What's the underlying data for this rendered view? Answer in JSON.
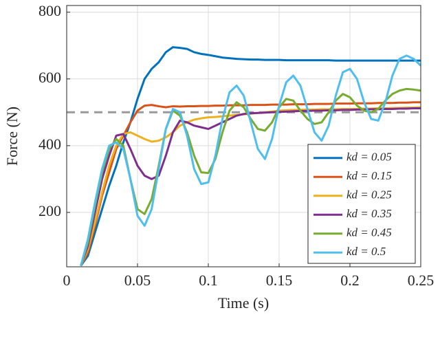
{
  "chart_data": {
    "type": "line",
    "x_label": "Time (s)",
    "y_label": "Force (N)",
    "x": [
      0.01,
      0.015,
      0.02,
      0.025,
      0.03,
      0.035,
      0.04,
      0.045,
      0.05,
      0.055,
      0.06,
      0.065,
      0.07,
      0.075,
      0.08,
      0.085,
      0.09,
      0.095,
      0.1,
      0.105,
      0.11,
      0.115,
      0.12,
      0.125,
      0.13,
      0.135,
      0.14,
      0.145,
      0.15,
      0.155,
      0.16,
      0.165,
      0.17,
      0.175,
      0.18,
      0.185,
      0.19,
      0.195,
      0.2,
      0.205,
      0.21,
      0.215,
      0.22,
      0.225,
      0.23,
      0.235,
      0.24,
      0.245,
      0.25
    ],
    "series": [
      {
        "name": "kd = 0.05",
        "color": "#0072bd",
        "values": [
          40,
          70,
          140,
          210,
          280,
          340,
          410,
          470,
          540,
          600,
          630,
          650,
          680,
          695,
          693,
          690,
          680,
          675,
          672,
          668,
          664,
          662,
          660,
          659,
          658,
          658,
          657,
          657,
          657,
          656,
          656,
          656,
          656,
          656,
          656,
          656,
          655,
          655,
          655,
          655,
          655,
          655,
          655,
          655,
          655,
          655,
          655,
          655,
          655
        ]
      },
      {
        "name": "kd = 0.15",
        "color": "#d95319",
        "values": [
          40,
          80,
          160,
          250,
          320,
          390,
          430,
          470,
          505,
          520,
          522,
          518,
          515,
          518,
          517,
          518,
          518,
          519,
          519,
          520,
          520,
          521,
          521,
          521,
          522,
          522,
          522,
          523,
          523,
          523,
          524,
          524,
          524,
          525,
          525,
          525,
          526,
          526,
          526,
          527,
          527,
          527,
          528,
          528,
          528,
          529,
          529,
          530,
          530
        ]
      },
      {
        "name": "kd = 0.25",
        "color": "#edb120",
        "values": [
          40,
          90,
          170,
          260,
          340,
          400,
          435,
          440,
          430,
          420,
          412,
          415,
          425,
          440,
          460,
          470,
          478,
          482,
          485,
          486,
          488,
          490,
          492,
          494,
          496,
          498,
          500,
          502,
          505,
          506,
          507,
          507,
          508,
          508,
          509,
          509,
          509,
          510,
          510,
          510,
          511,
          511,
          512,
          512,
          513,
          513,
          514,
          514,
          515
        ]
      },
      {
        "name": "kd = 0.35",
        "color": "#7e2f8e",
        "values": [
          40,
          100,
          200,
          300,
          370,
          430,
          435,
          390,
          340,
          310,
          300,
          310,
          370,
          440,
          475,
          470,
          460,
          455,
          450,
          460,
          470,
          480,
          490,
          495,
          497,
          498,
          499,
          500,
          501,
          502,
          503,
          504,
          504,
          505,
          505,
          506,
          506,
          507,
          507,
          508,
          508,
          509,
          509,
          510,
          510,
          511,
          511,
          512,
          512
        ]
      },
      {
        "name": "kd = 0.45",
        "color": "#77ac30",
        "values": [
          40,
          110,
          220,
          320,
          390,
          420,
          400,
          300,
          210,
          195,
          240,
          340,
          450,
          505,
          490,
          440,
          370,
          320,
          318,
          360,
          440,
          505,
          530,
          515,
          480,
          450,
          445,
          470,
          515,
          540,
          535,
          505,
          480,
          465,
          470,
          500,
          535,
          555,
          545,
          520,
          505,
          500,
          510,
          535,
          555,
          565,
          570,
          568,
          565
        ]
      },
      {
        "name": "kd = 0.5",
        "color": "#4dbeee",
        "values": [
          40,
          120,
          230,
          330,
          400,
          410,
          390,
          300,
          190,
          160,
          210,
          330,
          450,
          510,
          500,
          430,
          330,
          285,
          290,
          370,
          480,
          560,
          580,
          550,
          470,
          390,
          360,
          420,
          520,
          590,
          610,
          580,
          510,
          440,
          415,
          460,
          550,
          620,
          630,
          600,
          530,
          480,
          475,
          530,
          610,
          660,
          670,
          660,
          640
        ]
      }
    ],
    "reference_line": 500,
    "xlim": [
      0,
      0.25
    ],
    "ylim": [
      37,
      820
    ],
    "xticks": [
      0,
      0.05,
      0.1,
      0.15,
      0.2,
      0.25
    ],
    "yticks": [
      200,
      400,
      600,
      800
    ],
    "grid": true,
    "legend": "lower right"
  }
}
